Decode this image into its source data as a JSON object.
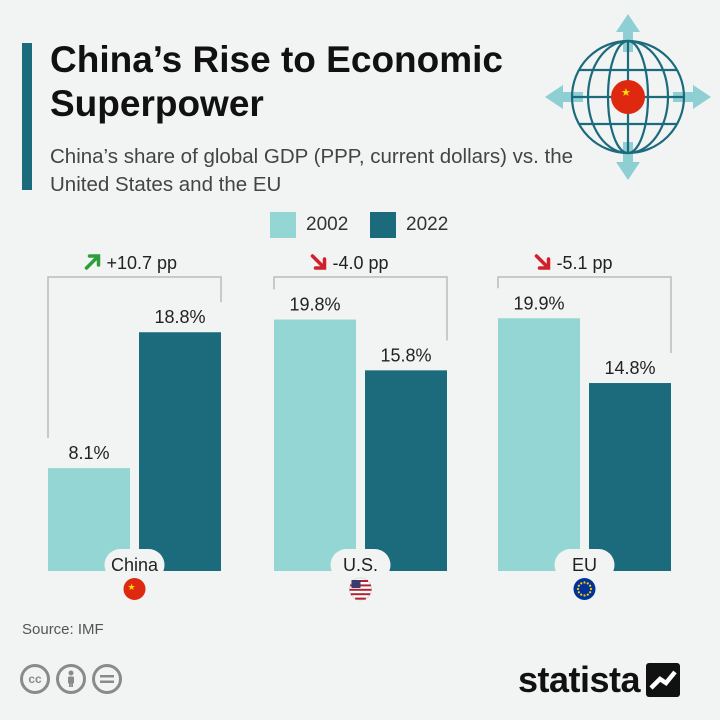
{
  "header": {
    "title": "China’s Rise to Economic Superpower",
    "subtitle": "China’s share of global GDP (PPP, current dollars) vs. the United States and the EU"
  },
  "legend": [
    {
      "label": "2002",
      "color": "#93d6d3"
    },
    {
      "label": "2022",
      "color": "#1b6b7c"
    }
  ],
  "colors": {
    "accent": "#1b6b7c",
    "up_arrow": "#2e9e3c",
    "down_arrow": "#d0202a"
  },
  "chart_data": {
    "type": "bar",
    "title": "China’s Rise to Economic Superpower",
    "categories": [
      "China",
      "U.S.",
      "EU"
    ],
    "series": [
      {
        "name": "2002",
        "values": [
          8.1,
          19.8,
          19.9
        ]
      },
      {
        "name": "2022",
        "values": [
          18.8,
          15.8,
          14.8
        ]
      }
    ],
    "data_labels": [
      [
        "8.1%",
        "18.8%"
      ],
      [
        "19.8%",
        "15.8%"
      ],
      [
        "19.9%",
        "14.8%"
      ]
    ],
    "changes": [
      {
        "label": "+10.7 pp",
        "direction": "up"
      },
      {
        "label": "-4.0 pp",
        "direction": "down"
      },
      {
        "label": "-5.1 pp",
        "direction": "down"
      }
    ],
    "flags": [
      "china-flag-icon",
      "us-flag-icon",
      "eu-flag-icon"
    ],
    "xlabel": "",
    "ylabel": "",
    "ylim": [
      0,
      21
    ],
    "grid": false,
    "legend_position": "top"
  },
  "footer": {
    "source": "Source: IMF",
    "brand": "statista",
    "license_icons": [
      "cc",
      "by",
      "nd"
    ]
  }
}
